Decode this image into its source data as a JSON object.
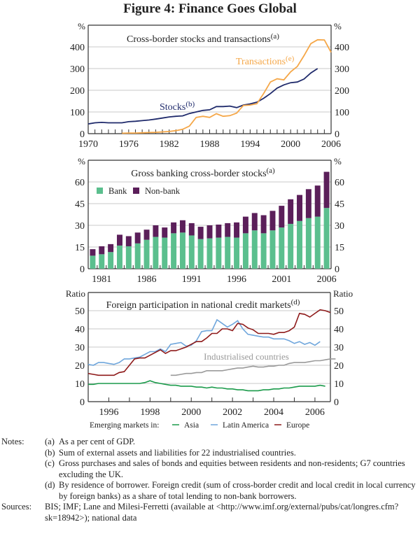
{
  "title": "Figure 4: Finance Goes Global",
  "colors": {
    "stocks": "#1f2a6b",
    "transactions": "#f5a748",
    "bank": "#5bbf8e",
    "nonbank": "#5b1f5a",
    "asia": "#1a9a4a",
    "latam": "#6fa6dc",
    "europe": "#8e1a1a",
    "industrialised": "#9a9a9a",
    "grid": "#c8c8c8"
  },
  "chart_data": [
    {
      "type": "line",
      "title": "Cross-border stocks and transactions",
      "title_sup": "(a)",
      "ylabel": "%",
      "ylim": [
        0,
        460
      ],
      "yticks": [
        0,
        100,
        200,
        300,
        400
      ],
      "xlim": [
        1970,
        2006
      ],
      "xticks": [
        1970,
        1976,
        1982,
        1988,
        1994,
        2000,
        2006
      ],
      "series": [
        {
          "name": "Stocks",
          "sup": "(b)",
          "x_start": 1970,
          "values": [
            45,
            50,
            52,
            50,
            50,
            50,
            55,
            57,
            60,
            63,
            67,
            72,
            77,
            80,
            82,
            93,
            100,
            107,
            110,
            125,
            125,
            127,
            120,
            132,
            137,
            145,
            163,
            185,
            210,
            225,
            235,
            238,
            252,
            280,
            300
          ]
        },
        {
          "name": "Transactions",
          "sup": "(e)",
          "x_start": 1975,
          "values": [
            2,
            3,
            3,
            4,
            5,
            6,
            8,
            10,
            14,
            20,
            35,
            75,
            80,
            75,
            92,
            80,
            83,
            95,
            130,
            132,
            138,
            185,
            238,
            253,
            248,
            285,
            310,
            360,
            415,
            433,
            432,
            375
          ]
        }
      ]
    },
    {
      "type": "bar",
      "stacked": true,
      "title": "Gross banking cross-border stocks",
      "title_sup": "(a)",
      "ylabel": "%",
      "ylim": [
        0,
        70
      ],
      "yticks": [
        0,
        15,
        30,
        45,
        60
      ],
      "categories": [
        1980,
        1981,
        1982,
        1983,
        1984,
        1985,
        1986,
        1987,
        1988,
        1989,
        1990,
        1991,
        1992,
        1993,
        1994,
        1995,
        1996,
        1997,
        1998,
        1999,
        2000,
        2001,
        2002,
        2003,
        2004,
        2005,
        2006
      ],
      "xtick_labels": [
        "1981",
        "1986",
        "1991",
        "1996",
        "2001",
        "2006"
      ],
      "legend": "top-left",
      "series": [
        {
          "name": "Bank",
          "values": [
            9,
            10,
            11.5,
            16,
            15.5,
            17.5,
            20,
            22,
            21.5,
            24.5,
            25,
            23,
            20.5,
            21,
            21.5,
            22,
            21.5,
            24.5,
            26.5,
            24.5,
            26.5,
            28.5,
            31,
            33,
            35,
            36,
            42
          ]
        },
        {
          "name": "Non-bank",
          "values": [
            4.5,
            5.5,
            5.5,
            7.5,
            7,
            7.5,
            7,
            8,
            7,
            7.5,
            8.5,
            8.5,
            8.5,
            9,
            9,
            9.5,
            10.5,
            11.5,
            12,
            12.5,
            13.5,
            15,
            17,
            18,
            20,
            21.5,
            25
          ]
        }
      ]
    },
    {
      "type": "line",
      "title": "Foreign participation in national credit markets",
      "title_sup": "(d)",
      "ylabel": "Ratio",
      "ylim": [
        0,
        55
      ],
      "yticks": [
        0,
        10,
        20,
        30,
        40,
        50
      ],
      "xlim": [
        1995,
        2006.75
      ],
      "xticks": [
        1996,
        1998,
        2000,
        2002,
        2004,
        2006
      ],
      "annotation": "Industrialised countries",
      "legend_prefix": "Emerging markets in:",
      "series": [
        {
          "name": "Asia",
          "x_start": 1995,
          "step": 0.25,
          "values": [
            9.5,
            9.5,
            10,
            10,
            10,
            10,
            10,
            10,
            10,
            10,
            10,
            10.5,
            11.5,
            10.5,
            10,
            9.5,
            9,
            9,
            8.5,
            8.5,
            8.5,
            8,
            8,
            7.5,
            8,
            7.5,
            7.5,
            7,
            7,
            6.5,
            6.5,
            6,
            6,
            6,
            6.5,
            6.5,
            7,
            7,
            7.5,
            7.5,
            8,
            8.5,
            8.5,
            8.5,
            8.5,
            9,
            8.5
          ]
        },
        {
          "name": "Latin America",
          "x_start": 1995,
          "step": 0.25,
          "values": [
            20.5,
            20,
            21.5,
            21.5,
            21,
            20.5,
            21.5,
            23.5,
            23.5,
            24,
            24.5,
            26,
            27.5,
            27.5,
            29,
            27.5,
            31.5,
            32,
            32.5,
            30.5,
            31,
            33.5,
            38.5,
            39,
            39,
            45,
            43,
            41,
            42.5,
            44.5,
            40,
            37,
            36.5,
            36,
            35.5,
            35.5,
            34.5,
            34.5,
            34.5,
            33.5,
            32,
            33,
            31.5,
            32.5,
            31,
            33
          ]
        },
        {
          "name": "Europe",
          "x_start": 1995,
          "step": 0.25,
          "values": [
            15.5,
            15,
            14.5,
            14.5,
            14.5,
            14.5,
            16,
            16.5,
            20,
            23.5,
            24,
            24,
            25.5,
            27,
            28.5,
            26.5,
            28,
            28,
            29,
            30,
            31.5,
            33,
            33,
            35,
            37.5,
            37.5,
            40,
            40,
            39,
            43,
            42.5,
            40.5,
            39.5,
            37.5,
            37.5,
            37.5,
            37,
            38,
            38,
            39,
            41,
            48.5,
            48,
            46.5,
            48.5,
            50.5,
            50,
            49
          ]
        },
        {
          "name": "Industrialised countries",
          "x_start": 1999,
          "step": 0.25,
          "values": [
            14.5,
            14.5,
            15,
            15.5,
            15.5,
            16,
            16,
            17,
            17,
            17,
            17,
            17.5,
            18,
            18.5,
            18.5,
            19,
            19.5,
            19,
            19,
            19.5,
            19.5,
            20,
            20,
            21,
            21.5,
            21.5,
            21.5,
            22,
            22.5,
            22.5,
            23,
            23.5,
            23.5
          ]
        }
      ]
    }
  ],
  "notes": {
    "label": "Notes:",
    "items": [
      {
        "key": "(a)",
        "text": "As a per cent of GDP."
      },
      {
        "key": "(b)",
        "text": "Sum of external assets and liabilities for 22 industrialised countries."
      },
      {
        "key": "(c)",
        "text": "Gross purchases and sales of bonds and equities between residents and non-residents; G7 countries excluding the UK."
      },
      {
        "key": "(d)",
        "text": "By residence of borrower. Foreign credit (sum of cross-border credit and local credit in local currency by foreign banks) as a share of total lending to non-bank borrowers."
      }
    ]
  },
  "sources": {
    "label": "Sources:",
    "text": "BIS; IMF; Lane and Milesi-Ferretti (available at <http://www.imf.org/external/pubs/cat/longres.cfm?sk=18942>); national data"
  }
}
